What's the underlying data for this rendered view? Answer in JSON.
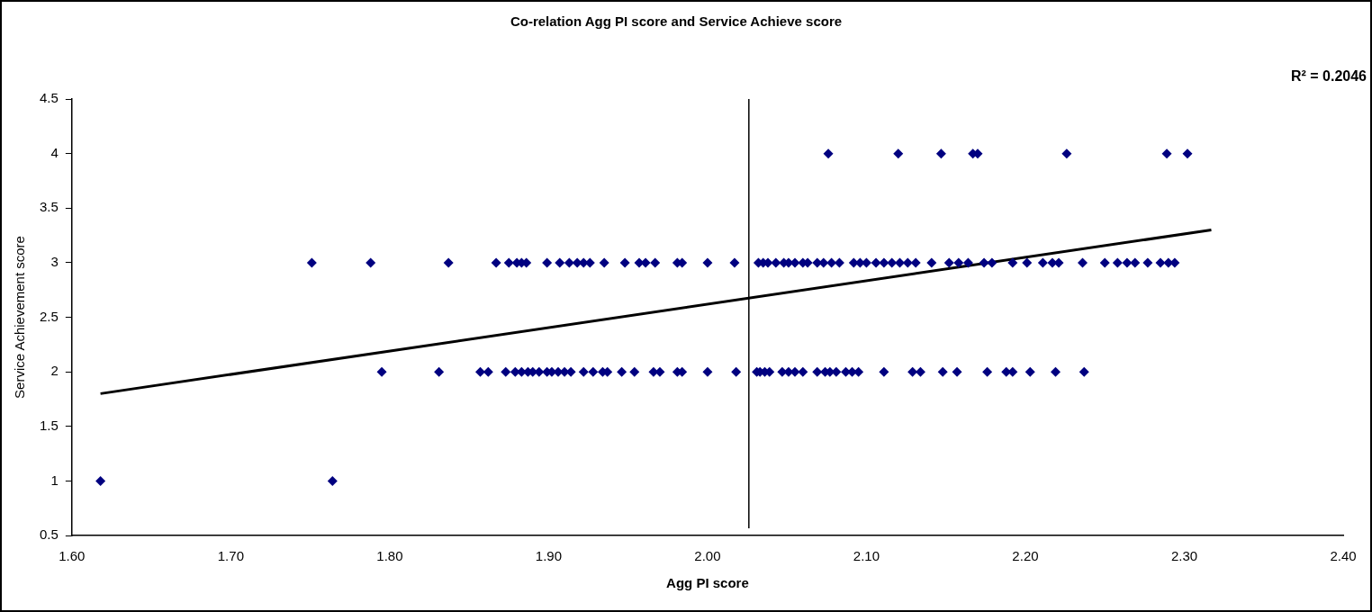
{
  "chart_data": {
    "type": "scatter",
    "title": "Co-relation Agg PI score and Service Achieve score",
    "xlabel": "Agg PI score",
    "ylabel": "Service Achievement score",
    "xlim": [
      1.6,
      2.4
    ],
    "xticks": [
      {
        "value": 1.6,
        "label": "1.60"
      },
      {
        "value": 1.7,
        "label": "1.70"
      },
      {
        "value": 1.8,
        "label": "1.80"
      },
      {
        "value": 1.9,
        "label": "1.90"
      },
      {
        "value": 2.0,
        "label": "2.00"
      },
      {
        "value": 2.1,
        "label": "2.10"
      },
      {
        "value": 2.2,
        "label": "2.20"
      },
      {
        "value": 2.3,
        "label": "2.30"
      },
      {
        "value": 2.4,
        "label": "2.40"
      }
    ],
    "ylim": [
      0.5,
      4.5
    ],
    "yticks": [
      0.5,
      1,
      1.5,
      2,
      2.5,
      3,
      3.5,
      4,
      4.5
    ],
    "marker": "diamond",
    "grid": false,
    "legend": false,
    "series": [
      {
        "color": "#000080",
        "x": [
          1.618,
          1.764,
          1.751,
          1.788,
          1.837,
          1.867,
          1.875,
          1.88,
          1.883,
          1.886,
          1.899,
          1.907,
          1.913,
          1.918,
          1.922,
          1.926,
          1.935,
          1.948,
          1.957,
          1.961,
          1.967,
          1.981,
          1.984,
          2.0,
          2.017,
          2.032,
          2.035,
          2.038,
          2.043,
          2.048,
          2.051,
          2.055,
          2.06,
          2.063,
          2.069,
          2.073,
          2.078,
          2.083,
          2.092,
          2.096,
          2.1,
          2.106,
          2.111,
          2.116,
          2.121,
          2.126,
          2.131,
          2.141,
          2.152,
          2.158,
          2.164,
          2.174,
          2.179,
          2.192,
          2.201,
          2.211,
          2.217,
          2.221,
          2.236,
          2.25,
          2.258,
          2.264,
          2.269,
          2.277,
          2.285,
          2.29,
          2.294,
          1.795,
          1.831,
          1.857,
          1.862,
          1.873,
          1.879,
          1.883,
          1.887,
          1.89,
          1.894,
          1.899,
          1.902,
          1.906,
          1.91,
          1.914,
          1.922,
          1.928,
          1.934,
          1.937,
          1.946,
          1.954,
          1.966,
          1.97,
          1.981,
          1.984,
          2.0,
          2.018,
          2.031,
          2.033,
          2.036,
          2.039,
          2.047,
          2.051,
          2.055,
          2.06,
          2.069,
          2.074,
          2.077,
          2.081,
          2.087,
          2.091,
          2.095,
          2.111,
          2.129,
          2.134,
          2.148,
          2.157,
          2.176,
          2.188,
          2.192,
          2.203,
          2.219,
          2.237,
          2.076,
          2.12,
          2.147,
          2.167,
          2.17,
          2.226,
          2.289,
          2.302
        ],
        "values": [
          1,
          1,
          3,
          3,
          3,
          3,
          3,
          3,
          3,
          3,
          3,
          3,
          3,
          3,
          3,
          3,
          3,
          3,
          3,
          3,
          3,
          3,
          3,
          3,
          3,
          3,
          3,
          3,
          3,
          3,
          3,
          3,
          3,
          3,
          3,
          3,
          3,
          3,
          3,
          3,
          3,
          3,
          3,
          3,
          3,
          3,
          3,
          3,
          3,
          3,
          3,
          3,
          3,
          3,
          3,
          3,
          3,
          3,
          3,
          3,
          3,
          3,
          3,
          3,
          3,
          3,
          3,
          2,
          2,
          2,
          2,
          2,
          2,
          2,
          2,
          2,
          2,
          2,
          2,
          2,
          2,
          2,
          2,
          2,
          2,
          2,
          2,
          2,
          2,
          2,
          2,
          2,
          2,
          2,
          2,
          2,
          2,
          2,
          2,
          2,
          2,
          2,
          2,
          2,
          2,
          2,
          2,
          2,
          2,
          2,
          2,
          2,
          2,
          2,
          2,
          2,
          2,
          2,
          2,
          2,
          4,
          4,
          4,
          4,
          4,
          4,
          4,
          4
        ]
      },
      {
        "type": "line",
        "color": "#000000",
        "marker": "none",
        "x": [
          1.618,
          2.317
        ],
        "values": [
          1.8,
          3.3
        ]
      }
    ],
    "ref_lines": [
      {
        "axis": "x",
        "value": 2.026,
        "color": "#000000"
      }
    ],
    "annotations": [
      "R² = 0.2046"
    ]
  }
}
